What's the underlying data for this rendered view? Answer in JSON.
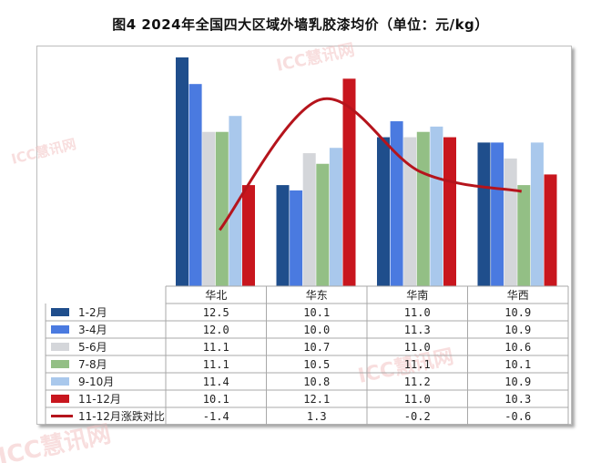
{
  "title": "图4 2024年全国四大区域外墙乳胶漆均价（单位：元/kg）",
  "watermark": "ICC慧讯网",
  "colors": {
    "s1": "#1f4e8c",
    "s2": "#4a7ae0",
    "s3": "#d4d6da",
    "s4": "#93bf85",
    "s5": "#a9c8ec",
    "s6": "#c8161e",
    "line": "#b5141c"
  },
  "chart_data": {
    "type": "bar",
    "title": "图4 2024年全国四大区域外墙乳胶漆均价（单位：元/kg）",
    "categories": [
      "华北",
      "华东",
      "华南",
      "华西"
    ],
    "series": [
      {
        "name": "1-2月",
        "values": [
          "12.5",
          "10.1",
          "11.0",
          "10.9"
        ]
      },
      {
        "name": "3-4月",
        "values": [
          "12.0",
          "10.0",
          "11.3",
          "10.9"
        ]
      },
      {
        "name": "5-6月",
        "values": [
          "11.1",
          "10.7",
          "11.0",
          "10.6"
        ]
      },
      {
        "name": "7-8月",
        "values": [
          "11.1",
          "10.5",
          "11.1",
          "10.1"
        ]
      },
      {
        "name": "9-10月",
        "values": [
          "11.4",
          "10.8",
          "11.2",
          "10.9"
        ]
      },
      {
        "name": "11-12月",
        "values": [
          "10.1",
          "12.1",
          "11.0",
          "10.3"
        ]
      }
    ],
    "line_series": {
      "name": "11-12月涨跌对比",
      "type": "line",
      "values": [
        "-1.4",
        "1.3",
        "-0.2",
        "-0.6"
      ]
    },
    "data_table": true
  }
}
